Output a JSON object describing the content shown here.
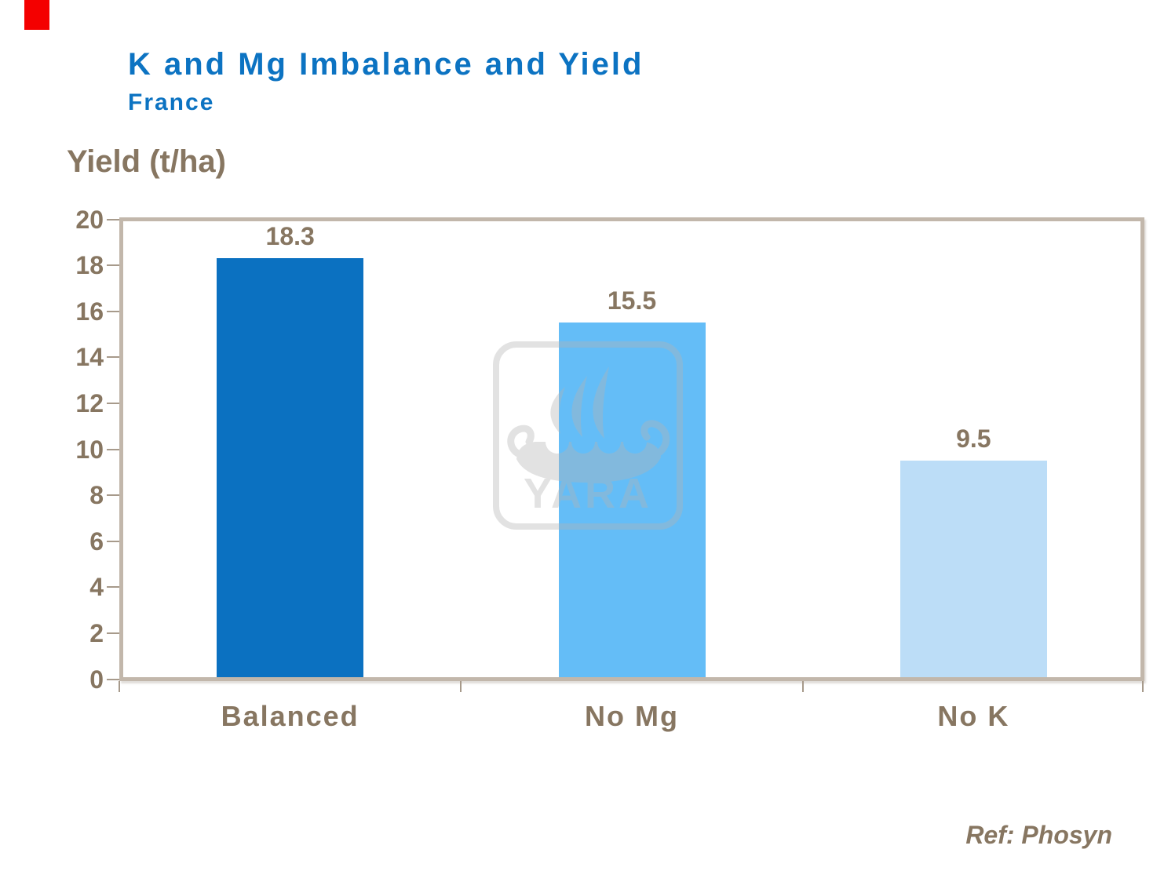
{
  "slide": {
    "background": "#FFFFFF"
  },
  "red_corner_tab": {
    "color": "#F40000"
  },
  "chart_data": {
    "type": "bar",
    "title": "K and Mg Imbalance and Yield",
    "subtitle": "France",
    "title_color": "#0C73C2",
    "subtitle_color": "#0C73C2",
    "ylabel": "Yield (t/ha)",
    "categories": [
      "Balanced",
      "No Mg",
      "No K"
    ],
    "values": [
      18.3,
      15.5,
      9.5
    ],
    "value_labels": [
      "18.3",
      "15.5",
      "9.5"
    ],
    "bar_colors": [
      "#0B71C1",
      "#64BDF7",
      "#BCDDF7"
    ],
    "ylim": [
      0,
      20
    ],
    "ytick_step": 2,
    "yticks": [
      "20",
      "18",
      "16",
      "14",
      "12",
      "10",
      "8",
      "6",
      "4",
      "2",
      "0"
    ],
    "grid": false,
    "legend": "none",
    "text_color": "#877661",
    "frame_color": "#C2B7AB",
    "tick_color": "#A79A8B"
  },
  "watermark": {
    "icon": "yara-viking-ship-logo",
    "text": "YARA",
    "color": "#B4B4B4",
    "opacity": 0.38
  },
  "footer": {
    "reference": "Ref: Phosyn"
  }
}
